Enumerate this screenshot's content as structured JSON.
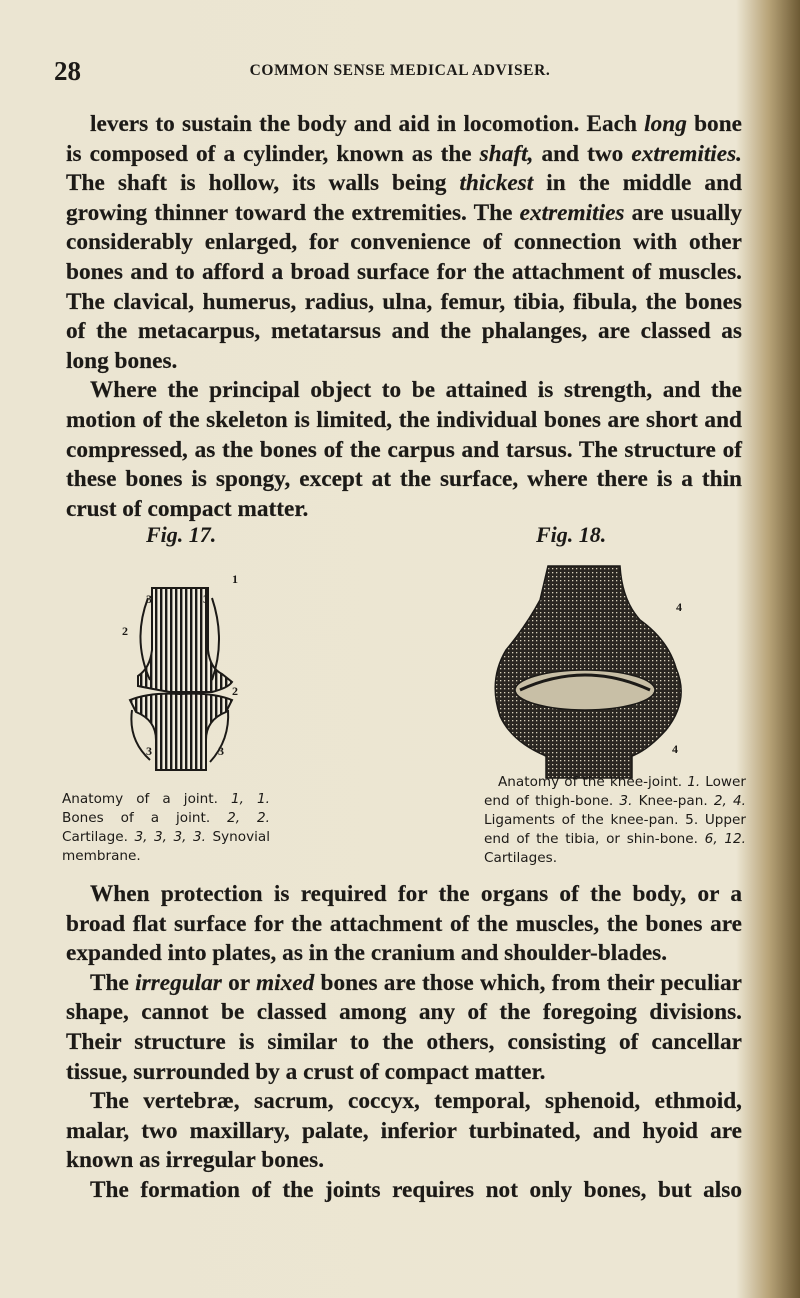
{
  "header": {
    "page_number": "28",
    "running_title": "COMMON SENSE MEDICAL ADVISER."
  },
  "paragraphs_before": [
    [
      "levers to sustain the body and aid in locomotion. Each ",
      "long",
      " bone is composed of a cylinder, known as the ",
      "shaft,",
      " and two ",
      "extremities.",
      " The shaft is hollow, its walls being ",
      "thickest",
      " in the middle and growing thinner toward the extremities. The ",
      "extremities",
      " are usually considerably enlarged, for convenience of connection with other bones and to afford a broad surface for the attachment of muscles. The clavical, humerus, radius, ulna, femur, tibia, fibula, the bones of the metacarpus, metatarsus and the phalanges, are classed as long bones."
    ],
    [
      "Where the principal object to be attained is strength, and the motion of the skeleton is limited, the individual bones are short and compressed, as the bones of the carpus and tarsus. The structure of these bones is spongy, except at the surface, where there is a thin crust of compact matter."
    ]
  ],
  "figures": [
    {
      "title": "Fig. 17.",
      "labels": [
        "1",
        "3",
        "3",
        "2",
        "2",
        "3",
        "3"
      ],
      "caption": [
        "Anatomy of a joint. ",
        "1, 1.",
        " Bones of a joint. ",
        "2, 2.",
        " Cartilage. ",
        "3, 3, 3, 3.",
        " Synovial membrane."
      ]
    },
    {
      "title": "Fig. 18.",
      "labels": [
        "4",
        "4"
      ],
      "caption": [
        "Anatomy of the knee-joint. ",
        "1.",
        " Lower end of thigh-bone. ",
        "3.",
        " Knee-pan. ",
        "2, 4.",
        " Ligaments of the knee-pan. 5. Upper end of the tibia, or shin-bone. ",
        "6, 12.",
        " Cartilages."
      ]
    }
  ],
  "paragraphs_after": [
    [
      "When protection is required for the organs of the body, or a broad flat surface for the attachment of the muscles, the bones are expanded into plates, as in the cranium and shoulder-blades."
    ],
    [
      "The ",
      "irregular",
      " or ",
      "mixed",
      " bones are those which, from their peculiar shape, cannot be classed among any of the foregoing divisions. Their structure is similar to the others, consisting of cancellar tissue, surrounded by a crust of compact matter."
    ],
    [
      "The vertebræ, sacrum, coccyx, temporal, sphenoid, ethmoid, malar, two maxillary, palate, inferior turbinated, and hyoid are known as irregular bones."
    ],
    [
      "The formation of the joints requires not only bones, but also"
    ]
  ]
}
